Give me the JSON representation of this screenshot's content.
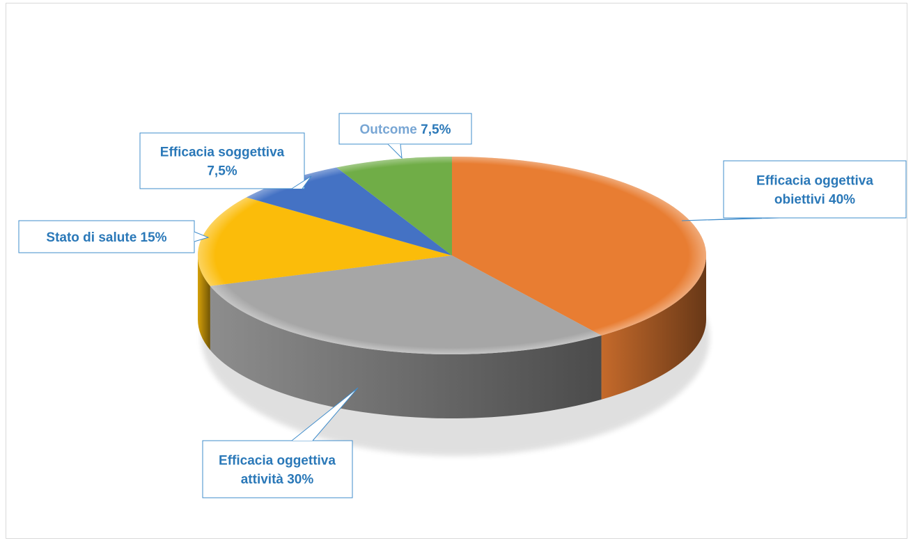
{
  "chart_data": {
    "type": "pie",
    "title": "",
    "style": "3d",
    "slices": [
      {
        "label": "Efficacia oggettiva obiettivi",
        "value": 40,
        "color": "#e87d32",
        "label_lines": [
          "Efficacia oggettiva",
          "obiettivi  40%"
        ]
      },
      {
        "label": "Efficacia oggettiva attività",
        "value": 30,
        "color": "#a6a6a6",
        "label_lines": [
          "Efficacia oggettiva",
          "attività 30%"
        ]
      },
      {
        "label": "Stato di salute",
        "value": 15,
        "color": "#fbbc0a",
        "label_lines": [
          "Stato di salute  15%"
        ]
      },
      {
        "label": "Efficacia soggettiva",
        "value": 7.5,
        "color": "#4472c4",
        "label_lines": [
          "Efficacia soggettiva",
          "7,5%"
        ]
      },
      {
        "label": "Outcome",
        "value": 7.5,
        "color": "#70ad47",
        "label_lines": [
          "Outcome",
          "7,5%"
        ]
      }
    ]
  }
}
